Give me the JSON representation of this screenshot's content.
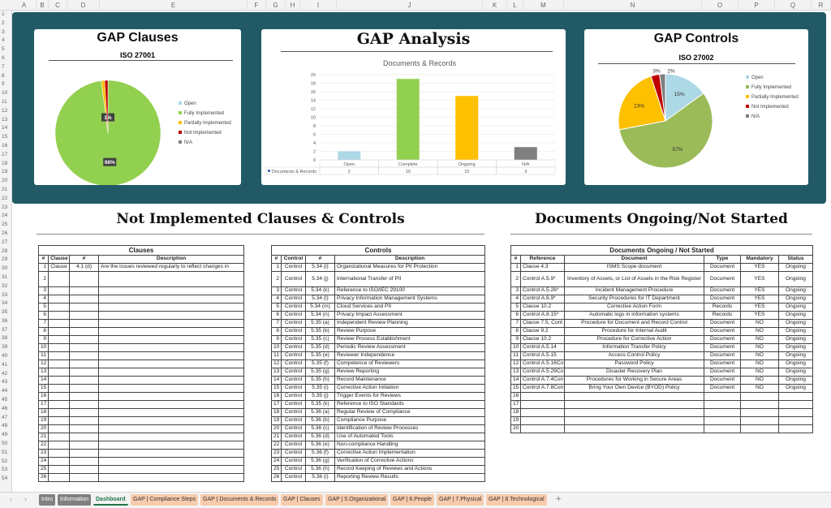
{
  "columns": [
    "A",
    "B",
    "C",
    "D",
    "E",
    "F",
    "G",
    "H",
    "I",
    "J",
    "K",
    "L",
    "M",
    "N",
    "O",
    "P",
    "Q",
    "R"
  ],
  "charts": {
    "clauses": {
      "title": "GAP Clauses",
      "subtitle": "ISO 27001"
    },
    "analysis": {
      "title": "GAP Analysis"
    },
    "controls": {
      "title": "GAP Controls",
      "subtitle": "ISO 27002"
    }
  },
  "chart_data": [
    {
      "type": "pie",
      "title": "GAP Clauses",
      "subtitle": "ISO 27001",
      "legend": "right",
      "categories": [
        "Open",
        "Fully Implemented",
        "Partially Implemented",
        "Not Implemented",
        "N/A"
      ],
      "values": [
        0,
        98,
        1,
        1,
        0
      ],
      "data_labels": [
        "",
        "98%",
        "1%",
        "",
        ""
      ],
      "colors": [
        "#add8e6",
        "#92d050",
        "#ffc000",
        "#c00000",
        "#7f7f7f"
      ]
    },
    {
      "type": "bar",
      "title": "Documents & Records",
      "categories": [
        "Open",
        "Complete",
        "Ongoing",
        "N/A"
      ],
      "series": [
        {
          "name": "Documents & Records",
          "values": [
            2,
            19,
            15,
            3
          ]
        }
      ],
      "ylim": [
        0,
        20
      ],
      "yticks": [
        0,
        2,
        4,
        6,
        8,
        10,
        12,
        14,
        16,
        18,
        20
      ],
      "grid": true,
      "data_table": true,
      "colors": [
        "#add8e6",
        "#92d050",
        "#ffc000",
        "#7f7f7f"
      ]
    },
    {
      "type": "pie",
      "title": "GAP Controls",
      "subtitle": "ISO 27002",
      "legend": "right",
      "categories": [
        "Open",
        "Fully Implemented",
        "Partially Implemented",
        "Not Implemented",
        "N/A"
      ],
      "values": [
        15,
        57,
        23,
        3,
        2
      ],
      "data_labels": [
        "15%",
        "57%",
        "23%",
        "3%",
        "2%"
      ],
      "colors": [
        "#add8e6",
        "#9bbb59",
        "#ffc000",
        "#c00000",
        "#7f7f7f"
      ]
    }
  ],
  "headings": {
    "left": "Not Implemented Clauses & Controls",
    "right": "Documents Ongoing/Not Started"
  },
  "clauses_table": {
    "title": "Clauses",
    "headers": [
      "#",
      "Clause",
      "#",
      "Description"
    ],
    "rows": [
      [
        "1",
        "Clause",
        "4.1 (d)",
        "Are the issues reviewed regularly to reflect changes in"
      ]
    ],
    "total_rows": 26
  },
  "controls_table": {
    "title": "Controls",
    "headers": [
      "#",
      "Control",
      "#",
      "Description"
    ],
    "rows": [
      [
        "1",
        "Control",
        "5.34 (i)",
        "Organizational Measures for PII Protection"
      ],
      [
        "2",
        "Control",
        "5.34 (j)",
        "International Transfer of PII"
      ],
      [
        "3",
        "Control",
        "5.34 (k)",
        "Reference to ISO/IEC 29100"
      ],
      [
        "4",
        "Control",
        "5.34 (l)",
        "Privacy Information Management Systems"
      ],
      [
        "5",
        "Control",
        "5.34 (m)",
        "Cloud Services and PII"
      ],
      [
        "6",
        "Control",
        "5.34 (n)",
        "Privacy Impact Assessment"
      ],
      [
        "7",
        "Control",
        "5.35 (a)",
        "Independent Review Planning"
      ],
      [
        "8",
        "Control",
        "5.35 (b)",
        "Review Purpose"
      ],
      [
        "9",
        "Control",
        "5.35 (c)",
        "Review Process Establishment"
      ],
      [
        "10",
        "Control",
        "5.35 (d)",
        "Periodic Review Assessment"
      ],
      [
        "11",
        "Control",
        "5.35 (e)",
        "Reviewer Independence"
      ],
      [
        "12",
        "Control",
        "5.35 (f)",
        "Competence of Reviewers"
      ],
      [
        "13",
        "Control",
        "5.35 (g)",
        "Review Reporting"
      ],
      [
        "14",
        "Control",
        "5.35 (h)",
        "Record Maintenance"
      ],
      [
        "15",
        "Control",
        "5.35 (i)",
        "Corrective Action Initiation"
      ],
      [
        "16",
        "Control",
        "5.35 (j)",
        "Trigger Events for Reviews"
      ],
      [
        "17",
        "Control",
        "5.35 (k)",
        "Reference to ISO Standards"
      ],
      [
        "18",
        "Control",
        "5.36 (a)",
        "Regular Review of Compliance"
      ],
      [
        "19",
        "Control",
        "5.36 (b)",
        "Compliance Purpose"
      ],
      [
        "20",
        "Control",
        "5.36 (c)",
        "Identification of Review Processes"
      ],
      [
        "21",
        "Control",
        "5.36 (d)",
        "Use of Automated Tools"
      ],
      [
        "22",
        "Control",
        "5.36 (e)",
        "Non-compliance Handling"
      ],
      [
        "23",
        "Control",
        "5.36 (f)",
        "Corrective Action Implementation"
      ],
      [
        "24",
        "Control",
        "5.36 (g)",
        "Verification of Corrective Actions"
      ],
      [
        "25",
        "Control",
        "5.36 (h)",
        "Record Keeping of Reviews and Actions"
      ],
      [
        "26",
        "Control",
        "5.36 (i)",
        "Reporting Review Results"
      ]
    ]
  },
  "documents_table": {
    "title": "Documents Ongoing / Not Started",
    "headers": [
      "#",
      "Reference",
      "Document",
      "Type",
      "Mandatory",
      "Status"
    ],
    "rows": [
      [
        "1",
        "Clause 4.3",
        "ISMS Scope document",
        "Document",
        "YES",
        "Ongoing"
      ],
      [
        "2",
        "Control A.5.9*",
        "Inventory of Assets, or List of Assets in the Risk Register",
        "Document",
        "YES",
        "Ongoing"
      ],
      [
        "3",
        "Control A.5.26*",
        "Incident Management Procedure",
        "Document",
        "YES",
        "Ongoing"
      ],
      [
        "4",
        "Control A.8.9*",
        "Security Procedures for IT Department",
        "Document",
        "YES",
        "Ongoing"
      ],
      [
        "5",
        "Clause 10.2",
        "Corrective Action Form",
        "Records",
        "YES",
        "Ongoing"
      ],
      [
        "6",
        "Control A.8.15*",
        "Automatic logs in information systems",
        "Records",
        "YES",
        "Ongoing"
      ],
      [
        "7",
        "Clause 7.5, Cont",
        "Procedure for Document and Record Control",
        "Document",
        "NO",
        "Ongoing"
      ],
      [
        "8",
        "Clause 9.2",
        "Procedure for Internal Audit",
        "Document",
        "NO",
        "Ongoing"
      ],
      [
        "9",
        "Clause 10.2",
        "Procedure for Corrective Action",
        "Document",
        "NO",
        "Ongoing"
      ],
      [
        "10",
        "Control A.5.14",
        "Information Transfer Policy",
        "Document",
        "NO",
        "Ongoing"
      ],
      [
        "11",
        "Control A.5.15",
        "Access Control Policy",
        "Document",
        "NO",
        "Ongoing"
      ],
      [
        "12",
        "Control A.5.16Co",
        "Password Policy",
        "Document",
        "NO",
        "Ongoing"
      ],
      [
        "13",
        "Control A.5.29Co",
        "Disaster Recovery Plan",
        "Document",
        "NO",
        "Ongoing"
      ],
      [
        "14",
        "Control A.7.4Con",
        "Procedures for Working in Secure Areas",
        "Document",
        "NO",
        "Ongoing"
      ],
      [
        "15",
        "Control A.7.8Con",
        "Bring Your Own Device (BYOD) Policy",
        "Document",
        "NO",
        "Ongoing"
      ]
    ],
    "total_rows": 20
  },
  "sheet_tabs": [
    {
      "label": "Intro",
      "style": "gray"
    },
    {
      "label": "Information",
      "style": "gray"
    },
    {
      "label": "Dashboard",
      "style": "active"
    },
    {
      "label": "GAP | Compliance Steps",
      "style": "orange"
    },
    {
      "label": "GAP | Documents & Records",
      "style": "orange"
    },
    {
      "label": "GAP | Clauses",
      "style": "orange"
    },
    {
      "label": "GAP | 5.Organizational",
      "style": "orange"
    },
    {
      "label": "GAP | 6.People",
      "style": "orange"
    },
    {
      "label": "GAP | 7.Physical",
      "style": "orange"
    },
    {
      "label": "GAP | 8.Technological",
      "style": "orange"
    }
  ],
  "add_sheet": "+",
  "colors": {
    "panel": "#215a66",
    "tab_orange": "#f8cbad",
    "tab_gray": "#808080"
  }
}
